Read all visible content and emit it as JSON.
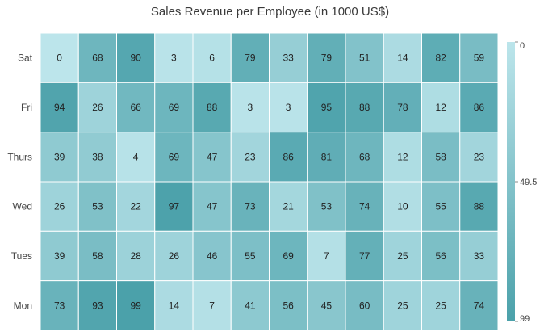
{
  "chart_data": {
    "type": "heatmap",
    "title": "Sales Revenue per Employee (in 1000 US$)",
    "rows": [
      "Sat",
      "Fri",
      "Thurs",
      "Wed",
      "Tues",
      "Mon"
    ],
    "values": [
      [
        0,
        68,
        90,
        3,
        6,
        79,
        33,
        79,
        51,
        14,
        82,
        59
      ],
      [
        94,
        26,
        66,
        69,
        88,
        3,
        3,
        95,
        88,
        78,
        12,
        86
      ],
      [
        39,
        38,
        4,
        69,
        47,
        23,
        86,
        81,
        68,
        12,
        58,
        23
      ],
      [
        26,
        53,
        22,
        97,
        47,
        73,
        21,
        53,
        74,
        10,
        55,
        88
      ],
      [
        39,
        58,
        28,
        26,
        46,
        55,
        69,
        7,
        77,
        25,
        56,
        33
      ],
      [
        73,
        93,
        99,
        14,
        7,
        41,
        56,
        45,
        60,
        25,
        25,
        74
      ]
    ],
    "color_scale": {
      "min": 0,
      "max": 99,
      "min_color": "#BCE5EB",
      "max_color": "#4BA1AA"
    },
    "legend": {
      "position": "right",
      "ticks": [
        "0",
        "49.5",
        "99"
      ]
    }
  }
}
